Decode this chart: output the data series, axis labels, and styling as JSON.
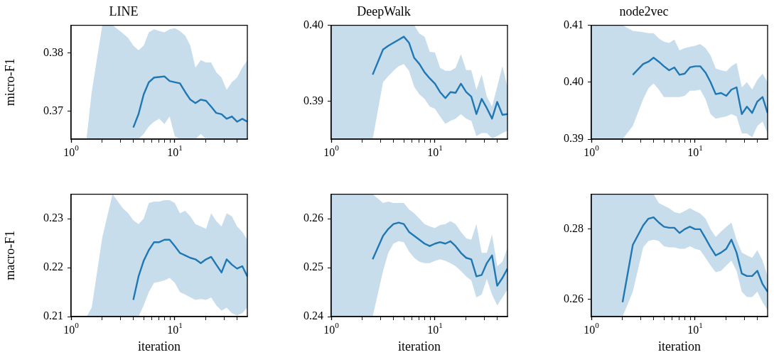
{
  "chart_data": [
    {
      "type": "line",
      "title": "LINE",
      "ylabel": "micro-F1",
      "log": "x",
      "xlim": [
        1,
        50
      ],
      "ylim": [
        0.3652,
        0.3848
      ],
      "xticks": [
        {
          "value": 1,
          "label": "10$^{0}$"
        },
        {
          "value": 2,
          "label": null
        },
        {
          "value": 3,
          "label": null
        },
        {
          "value": 4,
          "label": null
        },
        {
          "value": 5,
          "label": null
        },
        {
          "value": 6,
          "label": null
        },
        {
          "value": 7,
          "label": null
        },
        {
          "value": 8,
          "label": null
        },
        {
          "value": 9,
          "label": null
        },
        {
          "value": 10,
          "label": "10$^{1}$"
        },
        {
          "value": 20,
          "label": null
        },
        {
          "value": 30,
          "label": null
        },
        {
          "value": 40,
          "label": null
        }
      ],
      "yticks": [
        0.37,
        0.38
      ],
      "x": [
        1,
        1.26,
        1.41,
        1.58,
        2,
        2.51,
        3.16,
        3.55,
        3.98,
        4.47,
        5.01,
        5.62,
        6.31,
        7.08,
        7.94,
        8.91,
        10,
        11.2,
        12.6,
        14.1,
        15.8,
        17.8,
        20,
        22.4,
        25.1,
        28.2,
        31.6,
        35.5,
        39.8,
        44.7,
        50
      ],
      "series": [
        {
          "color": "#1f77b4",
          "values": [
            null,
            null,
            null,
            null,
            null,
            null,
            null,
            null,
            0.3672,
            0.3695,
            0.3729,
            0.375,
            0.3758,
            0.3759,
            0.376,
            0.3752,
            0.375,
            0.3748,
            0.3733,
            0.372,
            0.3714,
            0.372,
            0.3718,
            0.3708,
            0.3697,
            0.3695,
            0.3687,
            0.3691,
            0.3682,
            0.3687,
            0.3682
          ],
          "upper": [
            0.3652,
            0.3652,
            0.3653,
            0.3733,
            0.3848,
            0.3848,
            0.3834,
            0.3826,
            0.3813,
            0.3805,
            0.3813,
            0.3836,
            0.3841,
            0.3838,
            0.3836,
            0.3841,
            0.3843,
            0.3838,
            0.383,
            0.3813,
            0.3775,
            0.3788,
            0.3784,
            0.3784,
            0.3767,
            0.3758,
            0.3737,
            0.375,
            0.3758,
            0.3775,
            0.3788
          ],
          "lower": [
            0.3652,
            0.3652,
            0.3652,
            0.3652,
            0.3652,
            0.3652,
            0.3652,
            0.3652,
            0.3652,
            0.3652,
            0.3661,
            0.3674,
            0.3682,
            0.3687,
            0.3678,
            0.3691,
            0.3657,
            0.3652,
            0.3652,
            0.3652,
            0.3652,
            0.3661,
            0.3652,
            0.3652,
            0.3652,
            0.3652,
            0.3652,
            0.3652,
            0.3652,
            0.3652,
            0.3652
          ]
        }
      ]
    },
    {
      "type": "line",
      "title": "DeepWalk",
      "log": "x",
      "xlim": [
        1,
        50
      ],
      "ylim": [
        0.385,
        0.4
      ],
      "xticks": [
        {
          "value": 1,
          "label": "10$^{0}$"
        },
        {
          "value": 2,
          "label": null
        },
        {
          "value": 3,
          "label": null
        },
        {
          "value": 4,
          "label": null
        },
        {
          "value": 5,
          "label": null
        },
        {
          "value": 6,
          "label": null
        },
        {
          "value": 7,
          "label": null
        },
        {
          "value": 8,
          "label": null
        },
        {
          "value": 9,
          "label": null
        },
        {
          "value": 10,
          "label": "10$^{1}$"
        },
        {
          "value": 20,
          "label": null
        },
        {
          "value": 30,
          "label": null
        },
        {
          "value": 40,
          "label": null
        }
      ],
      "yticks": [
        0.39,
        {
          "value": 0.4,
          "label": "0.40"
        }
      ],
      "x": [
        1,
        1.26,
        1.41,
        1.58,
        2,
        2.51,
        3.16,
        3.55,
        3.98,
        4.47,
        5.01,
        5.62,
        6.31,
        7.08,
        7.94,
        8.91,
        10,
        11.2,
        12.6,
        14.1,
        15.8,
        17.8,
        20,
        22.4,
        25.1,
        28.2,
        31.6,
        35.5,
        39.8,
        44.7,
        50
      ],
      "series": [
        {
          "color": "#1f77b4",
          "values": [
            null,
            null,
            null,
            null,
            null,
            0.3935,
            0.3968,
            0.3973,
            0.3977,
            0.3981,
            0.3985,
            0.3977,
            0.3957,
            0.3949,
            0.3938,
            0.393,
            0.3923,
            0.3912,
            0.3904,
            0.3912,
            0.3911,
            0.3923,
            0.3912,
            0.3906,
            0.3883,
            0.3903,
            0.3891,
            0.3877,
            0.3899,
            0.3882,
            0.3883
          ],
          "upper": [
            0.4,
            0.4,
            0.4,
            0.4,
            0.4,
            0.4,
            0.4,
            0.4,
            0.4,
            0.4,
            0.4,
            0.4,
            0.4,
            0.3989,
            0.3985,
            0.3965,
            0.3964,
            0.3944,
            0.394,
            0.394,
            0.3944,
            0.3962,
            0.3941,
            0.3941,
            0.3915,
            0.3935,
            0.3906,
            0.3893,
            0.3919,
            0.3946,
            0.3919
          ],
          "lower": [
            0.385,
            0.385,
            0.385,
            0.385,
            0.385,
            0.385,
            0.3925,
            0.3933,
            0.394,
            0.3946,
            0.3949,
            0.394,
            0.3919,
            0.3909,
            0.3903,
            0.3893,
            0.389,
            0.388,
            0.387,
            0.3874,
            0.3877,
            0.3883,
            0.3877,
            0.3874,
            0.3854,
            0.3858,
            0.3858,
            0.3851,
            0.3854,
            0.3858,
            0.3861
          ]
        }
      ]
    },
    {
      "type": "line",
      "title": "node2vec",
      "log": "x",
      "xlim": [
        1,
        50
      ],
      "ylim": [
        0.39,
        0.41
      ],
      "xticks": [
        {
          "value": 1,
          "label": "10$^{0}$"
        },
        {
          "value": 2,
          "label": null
        },
        {
          "value": 3,
          "label": null
        },
        {
          "value": 4,
          "label": null
        },
        {
          "value": 5,
          "label": null
        },
        {
          "value": 6,
          "label": null
        },
        {
          "value": 7,
          "label": null
        },
        {
          "value": 8,
          "label": null
        },
        {
          "value": 9,
          "label": null
        },
        {
          "value": 10,
          "label": "10$^{1}$"
        },
        {
          "value": 20,
          "label": null
        },
        {
          "value": 30,
          "label": null
        },
        {
          "value": 40,
          "label": null
        }
      ],
      "yticks": [
        0.39,
        {
          "value": 0.4,
          "label": "0.40"
        },
        0.41
      ],
      "x": [
        1,
        1.26,
        1.41,
        1.58,
        2,
        2.51,
        3.16,
        3.55,
        3.98,
        4.47,
        5.01,
        5.62,
        6.31,
        7.08,
        7.94,
        8.91,
        10,
        11.2,
        12.6,
        14.1,
        15.8,
        17.8,
        20,
        22.4,
        25.1,
        28.2,
        31.6,
        35.5,
        39.8,
        44.7,
        50
      ],
      "series": [
        {
          "color": "#1f77b4",
          "values": [
            null,
            null,
            null,
            null,
            null,
            0.4013,
            0.4032,
            0.4036,
            0.4043,
            0.4036,
            0.4028,
            0.4021,
            0.4026,
            0.4013,
            0.4015,
            0.4026,
            0.4028,
            0.4028,
            0.4017,
            0.4,
            0.3979,
            0.3981,
            0.3976,
            0.3987,
            0.3991,
            0.3944,
            0.3957,
            0.3946,
            0.3966,
            0.3974,
            0.3946
          ],
          "upper": [
            0.41,
            0.41,
            0.41,
            0.41,
            0.41,
            0.409,
            0.4088,
            0.4086,
            0.4086,
            0.4077,
            0.4071,
            0.4069,
            0.4075,
            0.4056,
            0.406,
            0.4062,
            0.4064,
            0.4067,
            0.406,
            0.4047,
            0.4024,
            0.4021,
            0.4019,
            0.4028,
            0.4034,
            0.3991,
            0.4,
            0.3987,
            0.4004,
            0.4015,
            0.4
          ],
          "lower": [
            0.39,
            0.39,
            0.39,
            0.39,
            0.39,
            0.3923,
            0.397,
            0.3989,
            0.3998,
            0.3987,
            0.3974,
            0.3974,
            0.3974,
            0.3974,
            0.3976,
            0.3985,
            0.3985,
            0.3987,
            0.397,
            0.3944,
            0.3936,
            0.3938,
            0.394,
            0.3944,
            0.394,
            0.391,
            0.391,
            0.3903,
            0.3923,
            0.3931,
            0.391
          ]
        }
      ]
    },
    {
      "type": "line",
      "ylabel": "macro-F1",
      "xlabel": "iteration",
      "log": "x",
      "xlim": [
        1,
        50
      ],
      "ylim": [
        0.21,
        0.235
      ],
      "xticks": [
        {
          "value": 1,
          "label": "10$^{0}$"
        },
        {
          "value": 2,
          "label": null
        },
        {
          "value": 3,
          "label": null
        },
        {
          "value": 4,
          "label": null
        },
        {
          "value": 5,
          "label": null
        },
        {
          "value": 6,
          "label": null
        },
        {
          "value": 7,
          "label": null
        },
        {
          "value": 8,
          "label": null
        },
        {
          "value": 9,
          "label": null
        },
        {
          "value": 10,
          "label": "10$^{1}$"
        },
        {
          "value": 20,
          "label": null
        },
        {
          "value": 30,
          "label": null
        },
        {
          "value": 40,
          "label": null
        }
      ],
      "yticks": [
        0.21,
        0.22,
        0.23
      ],
      "x": [
        1,
        1.26,
        1.41,
        1.58,
        2,
        2.51,
        3.16,
        3.55,
        3.98,
        4.47,
        5.01,
        5.62,
        6.31,
        7.08,
        7.94,
        8.91,
        10,
        11.2,
        12.6,
        14.1,
        15.8,
        17.8,
        20,
        22.4,
        25.1,
        28.2,
        31.6,
        35.5,
        39.8,
        44.7,
        50
      ],
      "series": [
        {
          "color": "#1f77b4",
          "values": [
            null,
            null,
            null,
            null,
            null,
            null,
            null,
            null,
            0.2134,
            0.2182,
            0.2214,
            0.2236,
            0.2252,
            0.2252,
            0.2257,
            0.2257,
            0.2244,
            0.223,
            0.2225,
            0.222,
            0.2217,
            0.2209,
            0.2217,
            0.2222,
            0.2206,
            0.219,
            0.2217,
            0.2206,
            0.2198,
            0.2203,
            0.2182
          ],
          "upper": [
            0.21,
            0.21,
            0.21,
            0.2118,
            0.2262,
            0.235,
            0.2321,
            0.2311,
            0.2297,
            0.2289,
            0.23,
            0.2332,
            0.2335,
            0.2335,
            0.2338,
            0.2338,
            0.2332,
            0.2311,
            0.2316,
            0.2305,
            0.2289,
            0.2284,
            0.2279,
            0.2311,
            0.2295,
            0.2284,
            0.2311,
            0.2305,
            0.2284,
            0.2273,
            0.2257
          ],
          "lower": [
            0.21,
            0.21,
            0.21,
            0.21,
            0.21,
            0.21,
            0.21,
            0.21,
            0.21,
            0.21,
            0.2123,
            0.215,
            0.2169,
            0.2171,
            0.2174,
            0.2179,
            0.2169,
            0.215,
            0.2145,
            0.2139,
            0.2134,
            0.2136,
            0.2134,
            0.2139,
            0.2123,
            0.2112,
            0.2118,
            0.2107,
            0.2102,
            0.2107,
            0.2118
          ]
        }
      ]
    },
    {
      "type": "line",
      "xlabel": "iteration",
      "log": "x",
      "xlim": [
        1,
        50
      ],
      "ylim": [
        0.24,
        0.265
      ],
      "xticks": [
        {
          "value": 1,
          "label": "10$^{0}$"
        },
        {
          "value": 2,
          "label": null
        },
        {
          "value": 3,
          "label": null
        },
        {
          "value": 4,
          "label": null
        },
        {
          "value": 5,
          "label": null
        },
        {
          "value": 6,
          "label": null
        },
        {
          "value": 7,
          "label": null
        },
        {
          "value": 8,
          "label": null
        },
        {
          "value": 9,
          "label": null
        },
        {
          "value": 10,
          "label": "10$^{1}$"
        },
        {
          "value": 20,
          "label": null
        },
        {
          "value": 30,
          "label": null
        },
        {
          "value": 40,
          "label": null
        }
      ],
      "yticks": [
        0.24,
        0.25,
        0.26
      ],
      "x": [
        1,
        1.26,
        1.41,
        1.58,
        2,
        2.51,
        3.16,
        3.55,
        3.98,
        4.47,
        5.01,
        5.62,
        6.31,
        7.08,
        7.94,
        8.91,
        10,
        11.2,
        12.6,
        14.1,
        15.8,
        17.8,
        20,
        22.4,
        25.1,
        28.2,
        31.6,
        35.5,
        39.8,
        44.7,
        50
      ],
      "series": [
        {
          "color": "#1f77b4",
          "values": [
            null,
            null,
            null,
            null,
            null,
            0.2517,
            0.2565,
            0.2579,
            0.2589,
            0.2592,
            0.2589,
            0.2573,
            0.2565,
            0.2557,
            0.2549,
            0.2544,
            0.2549,
            0.2552,
            0.2549,
            0.2554,
            0.2544,
            0.253,
            0.252,
            0.2517,
            0.2482,
            0.2485,
            0.2509,
            0.2525,
            0.2463,
            0.2479,
            0.2498
          ],
          "upper": [
            0.265,
            0.265,
            0.265,
            0.265,
            0.265,
            0.265,
            0.2632,
            0.2635,
            0.2632,
            0.2632,
            0.2632,
            0.2619,
            0.2611,
            0.26,
            0.2589,
            0.2584,
            0.2581,
            0.2587,
            0.2589,
            0.2595,
            0.2589,
            0.2573,
            0.256,
            0.2557,
            0.2589,
            0.253,
            0.253,
            0.2568,
            0.2503,
            0.2512,
            0.2541
          ],
          "lower": [
            0.24,
            0.24,
            0.24,
            0.24,
            0.24,
            0.24,
            0.2493,
            0.253,
            0.2549,
            0.2554,
            0.2552,
            0.2533,
            0.252,
            0.2512,
            0.2509,
            0.2509,
            0.2514,
            0.2517,
            0.2514,
            0.2509,
            0.2503,
            0.2493,
            0.2482,
            0.2474,
            0.2439,
            0.2445,
            0.2477,
            0.2445,
            0.2423,
            0.2439,
            0.2455
          ]
        }
      ]
    },
    {
      "type": "line",
      "xlabel": "iteration",
      "log": "x",
      "xlim": [
        1,
        50
      ],
      "ylim": [
        0.255,
        0.29
      ],
      "xticks": [
        {
          "value": 1,
          "label": "10$^{0}$"
        },
        {
          "value": 2,
          "label": null
        },
        {
          "value": 3,
          "label": null
        },
        {
          "value": 4,
          "label": null
        },
        {
          "value": 5,
          "label": null
        },
        {
          "value": 6,
          "label": null
        },
        {
          "value": 7,
          "label": null
        },
        {
          "value": 8,
          "label": null
        },
        {
          "value": 9,
          "label": null
        },
        {
          "value": 10,
          "label": "10$^{1}$"
        },
        {
          "value": 20,
          "label": null
        },
        {
          "value": 30,
          "label": null
        },
        {
          "value": 40,
          "label": null
        }
      ],
      "yticks": [
        0.26,
        0.28
      ],
      "x": [
        1,
        1.26,
        1.41,
        1.58,
        2,
        2.51,
        3.16,
        3.55,
        3.98,
        4.47,
        5.01,
        5.62,
        6.31,
        7.08,
        7.94,
        8.91,
        10,
        11.2,
        12.6,
        14.1,
        15.8,
        17.8,
        20,
        22.4,
        25.1,
        28.2,
        31.6,
        35.5,
        39.8,
        44.7,
        50
      ],
      "series": [
        {
          "color": "#1f77b4",
          "values": [
            null,
            null,
            null,
            null,
            0.2591,
            0.2755,
            0.2811,
            0.283,
            0.2834,
            0.2819,
            0.2807,
            0.2804,
            0.2804,
            0.2789,
            0.28,
            0.2807,
            0.28,
            0.28,
            0.2774,
            0.2748,
            0.2725,
            0.2733,
            0.2744,
            0.277,
            0.2733,
            0.2673,
            0.2666,
            0.2666,
            0.2681,
            0.2643,
            0.2621
          ],
          "upper": [
            0.29,
            0.29,
            0.29,
            0.29,
            0.29,
            0.29,
            0.29,
            0.29,
            0.29,
            0.2875,
            0.2867,
            0.286,
            0.2849,
            0.2845,
            0.2852,
            0.286,
            0.2852,
            0.2845,
            0.283,
            0.28,
            0.2778,
            0.2793,
            0.2807,
            0.2819,
            0.277,
            0.2733,
            0.2725,
            0.2718,
            0.274,
            0.271,
            0.2666
          ],
          "lower": [
            0.255,
            0.255,
            0.255,
            0.255,
            0.255,
            0.2621,
            0.2748,
            0.2766,
            0.277,
            0.2766,
            0.2751,
            0.2748,
            0.2748,
            0.2744,
            0.2744,
            0.2751,
            0.2744,
            0.274,
            0.2718,
            0.2696,
            0.2677,
            0.2681,
            0.2696,
            0.271,
            0.2681,
            0.2621,
            0.2606,
            0.2606,
            0.2621,
            0.2591,
            0.2569
          ]
        }
      ]
    }
  ]
}
